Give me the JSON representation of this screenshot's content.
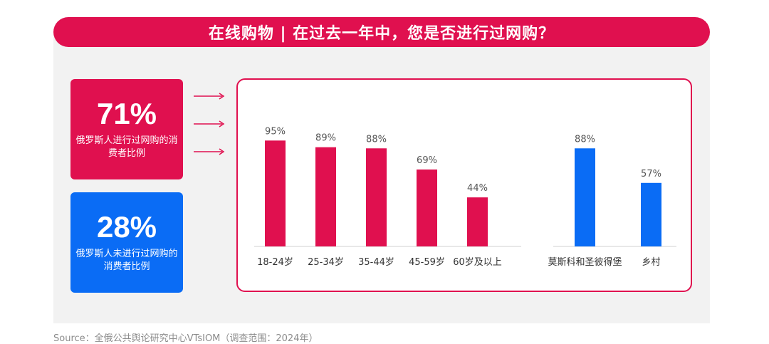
{
  "banner": {
    "title": "在线购物 | 在过去一年中，您是否进行过网购？"
  },
  "stats": [
    {
      "value": "71%",
      "label": "俄罗斯人进行过网购的消费者比例",
      "color": "#e0104f"
    },
    {
      "value": "28%",
      "label": "俄罗斯人未进行过网购的消费者比例",
      "color": "#0a6cf5"
    }
  ],
  "chart_data": [
    {
      "type": "bar",
      "categories": [
        "18-24岁",
        "25-34岁",
        "35-44岁",
        "45-59岁",
        "60岁及以上"
      ],
      "values": [
        95,
        89,
        88,
        69,
        44
      ],
      "data_labels": [
        "95%",
        "89%",
        "88%",
        "69%",
        "44%"
      ],
      "color": "#e0104f",
      "ylim": [
        0,
        100
      ],
      "title": "",
      "xlabel": "",
      "ylabel": "",
      "grid": false
    },
    {
      "type": "bar",
      "categories": [
        "莫斯科和圣彼得堡",
        "乡村"
      ],
      "values": [
        88,
        57
      ],
      "data_labels": [
        "88%",
        "57%"
      ],
      "color": "#0a6cf5",
      "ylim": [
        0,
        100
      ],
      "title": "",
      "xlabel": "",
      "ylabel": "",
      "grid": false
    }
  ],
  "source": "Source：全俄公共舆论研究中心VTsIOM（调查范围：2024年）"
}
